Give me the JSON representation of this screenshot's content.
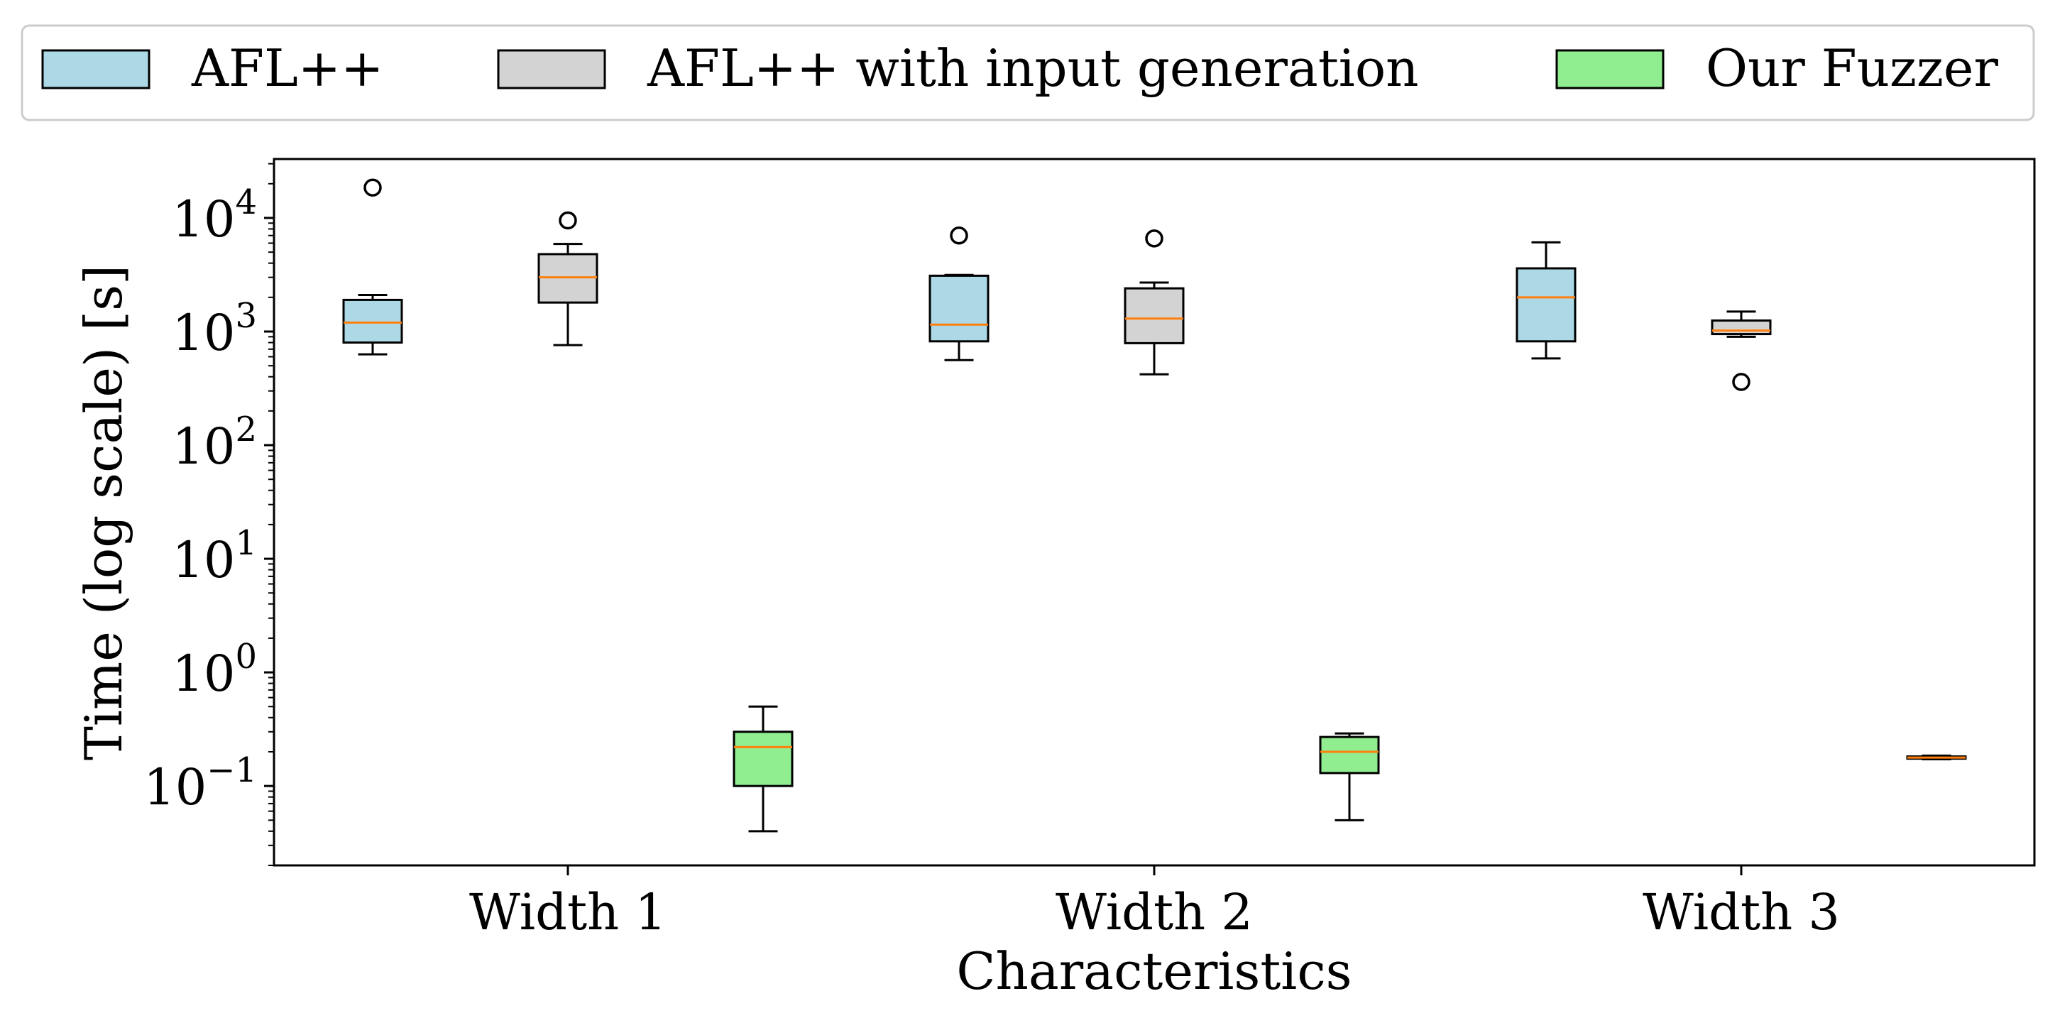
{
  "chart_data": {
    "type": "box",
    "title": "",
    "xlabel": "Characteristics",
    "ylabel": "Time (log scale) [s]",
    "y_scale": "log",
    "ylim": [
      0.02,
      33000
    ],
    "grid": false,
    "legend_position": "top (outside, above plot)",
    "categories": [
      "Width 1",
      "Width 2",
      "Width 3"
    ],
    "yticks": [
      {
        "value": 0.1,
        "base": "10",
        "exp": "−1"
      },
      {
        "value": 1,
        "base": "10",
        "exp": "0"
      },
      {
        "value": 10,
        "base": "10",
        "exp": "1"
      },
      {
        "value": 100,
        "base": "10",
        "exp": "2"
      },
      {
        "value": 1000,
        "base": "10",
        "exp": "3"
      },
      {
        "value": 10000,
        "base": "10",
        "exp": "4"
      }
    ],
    "series": [
      {
        "name": "AFL++",
        "color": "#add8e6",
        "boxes": [
          {
            "category": "Width 1",
            "whisker_low": 630,
            "q1": 800,
            "median": 1200,
            "q3": 1900,
            "whisker_high": 2100,
            "outliers": [
              18500
            ]
          },
          {
            "category": "Width 2",
            "whisker_low": 560,
            "q1": 820,
            "median": 1150,
            "q3": 3100,
            "whisker_high": 3150,
            "outliers": [
              7000
            ]
          },
          {
            "category": "Width 3",
            "whisker_low": 580,
            "q1": 820,
            "median": 2000,
            "q3": 3600,
            "whisker_high": 6100,
            "outliers": []
          }
        ]
      },
      {
        "name": "AFL++ with input generation",
        "color": "#d3d3d3",
        "boxes": [
          {
            "category": "Width 1",
            "whisker_low": 760,
            "q1": 1800,
            "median": 3000,
            "q3": 4800,
            "whisker_high": 5900,
            "outliers": [
              9500
            ]
          },
          {
            "category": "Width 2",
            "whisker_low": 420,
            "q1": 790,
            "median": 1300,
            "q3": 2400,
            "whisker_high": 2700,
            "outliers": [
              6600
            ]
          },
          {
            "category": "Width 3",
            "whisker_low": 900,
            "q1": 950,
            "median": 1020,
            "q3": 1250,
            "whisker_high": 1500,
            "outliers": [
              360
            ]
          }
        ]
      },
      {
        "name": "Our Fuzzer",
        "color": "#90ee90",
        "boxes": [
          {
            "category": "Width 1",
            "whisker_low": 0.04,
            "q1": 0.1,
            "median": 0.22,
            "q3": 0.3,
            "whisker_high": 0.5,
            "outliers": []
          },
          {
            "category": "Width 2",
            "whisker_low": 0.05,
            "q1": 0.13,
            "median": 0.2,
            "q3": 0.27,
            "whisker_high": 0.29,
            "outliers": []
          },
          {
            "category": "Width 3",
            "whisker_low": 0.172,
            "q1": 0.174,
            "median": 0.178,
            "q3": 0.182,
            "whisker_high": 0.185,
            "outliers": []
          }
        ]
      }
    ],
    "style": {
      "median_color": "#ff7f0e",
      "edge_color": "#000000",
      "legend_frame_color": "#cccccc"
    }
  }
}
